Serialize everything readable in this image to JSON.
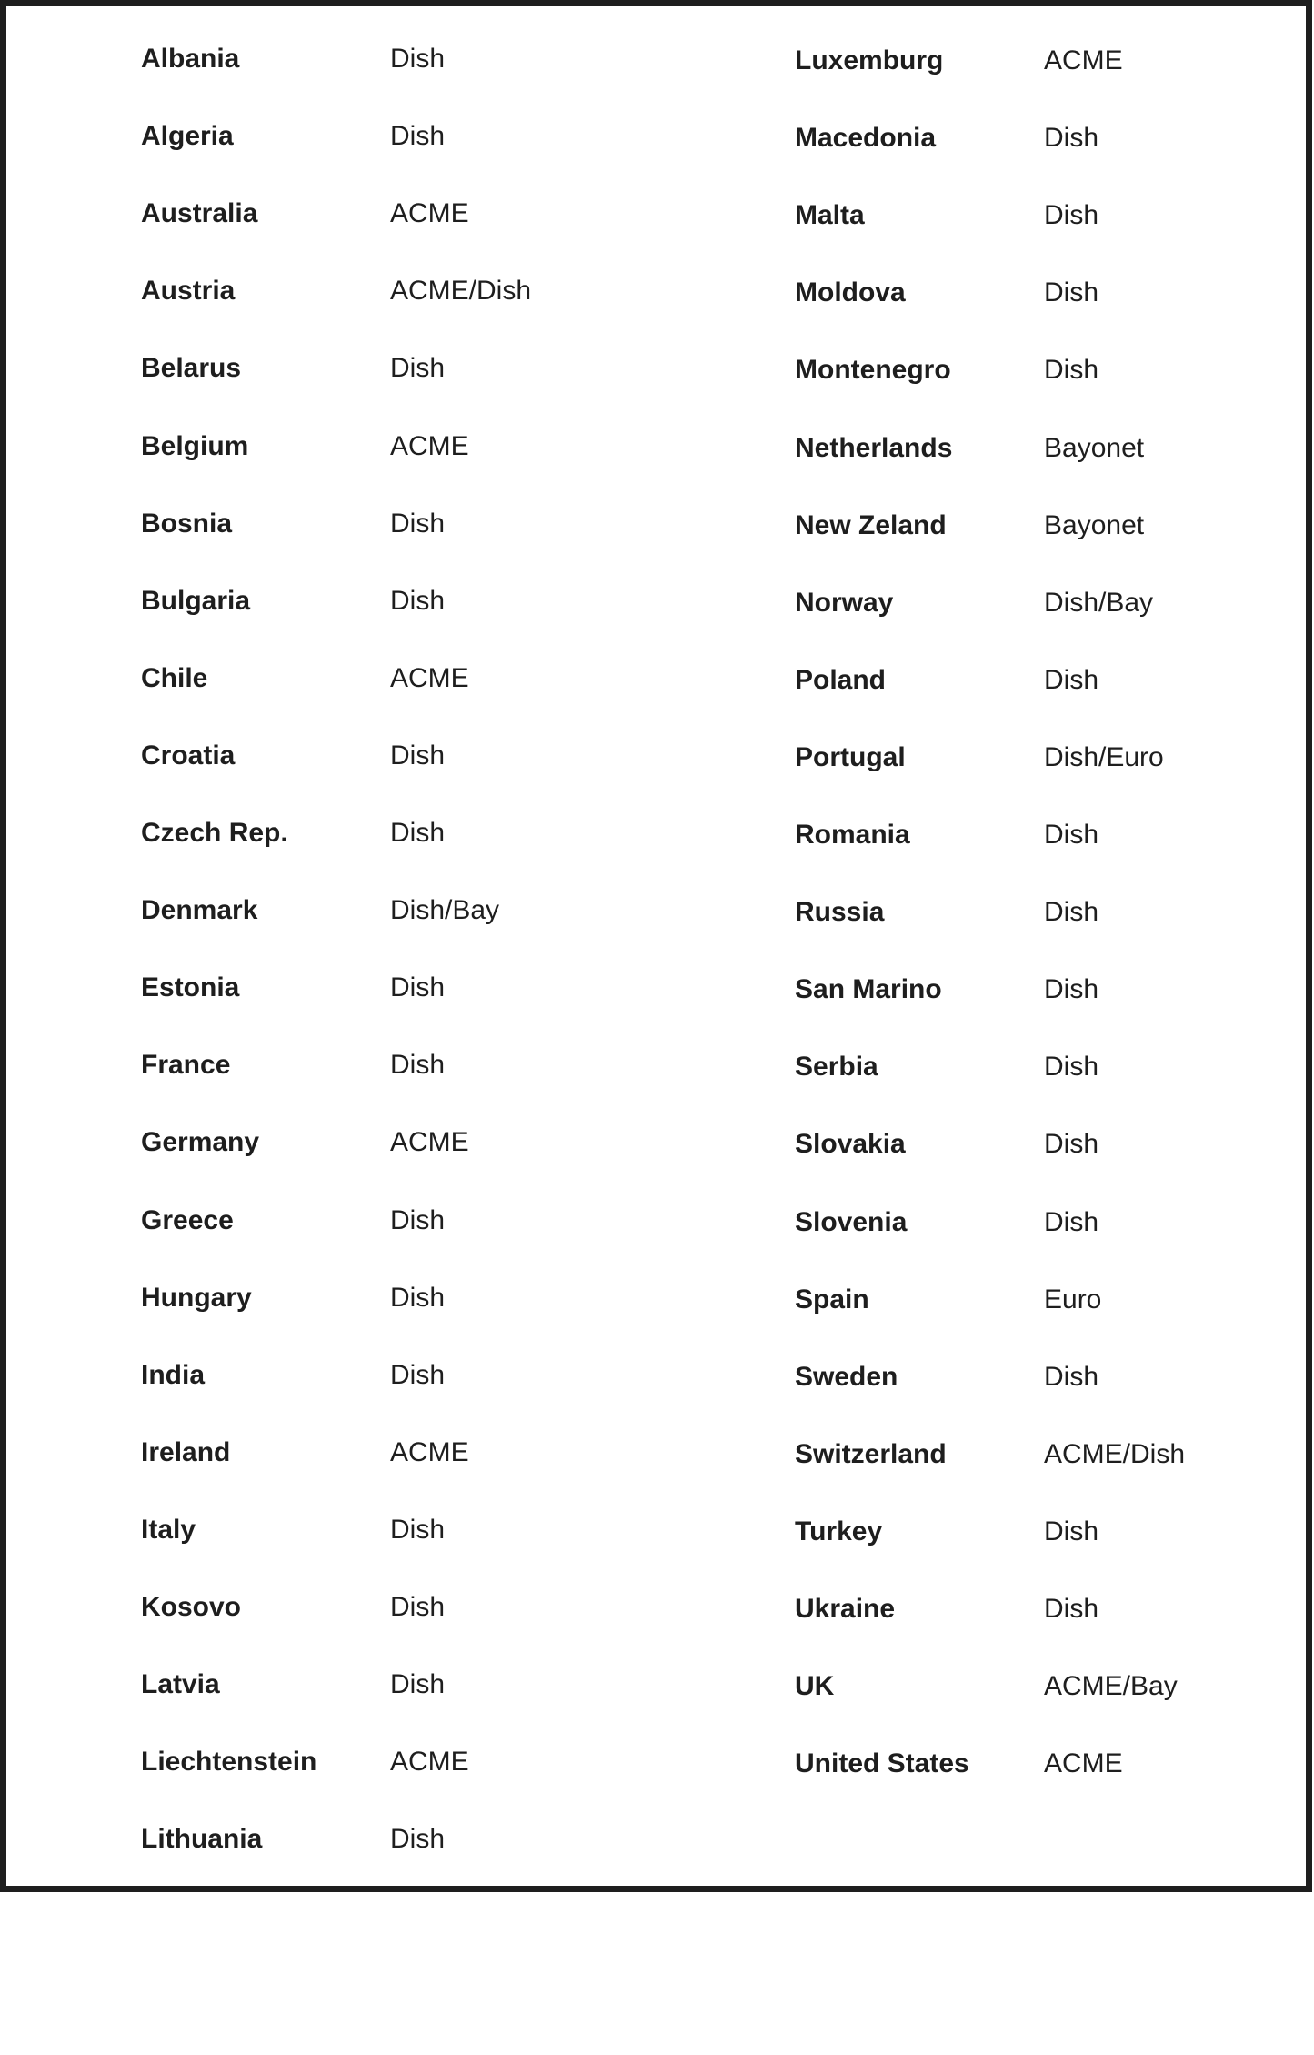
{
  "left_column": [
    {
      "country": "Albania",
      "type": "Dish"
    },
    {
      "country": "Algeria",
      "type": "Dish"
    },
    {
      "country": "Australia",
      "type": "ACME"
    },
    {
      "country": "Austria",
      "type": "ACME/Dish"
    },
    {
      "country": "Belarus",
      "type": "Dish"
    },
    {
      "country": "Belgium",
      "type": "ACME"
    },
    {
      "country": "Bosnia",
      "type": "Dish"
    },
    {
      "country": "Bulgaria",
      "type": "Dish"
    },
    {
      "country": "Chile",
      "type": "ACME"
    },
    {
      "country": "Croatia",
      "type": "Dish"
    },
    {
      "country": "Czech Rep.",
      "type": "Dish"
    },
    {
      "country": "Denmark",
      "type": "Dish/Bay"
    },
    {
      "country": "Estonia",
      "type": "Dish"
    },
    {
      "country": "France",
      "type": "Dish"
    },
    {
      "country": "Germany",
      "type": "ACME"
    },
    {
      "country": "Greece",
      "type": "Dish"
    },
    {
      "country": "Hungary",
      "type": "Dish"
    },
    {
      "country": "India",
      "type": "Dish"
    },
    {
      "country": "Ireland",
      "type": "ACME"
    },
    {
      "country": "Italy",
      "type": "Dish"
    },
    {
      "country": "Kosovo",
      "type": "Dish"
    },
    {
      "country": "Latvia",
      "type": "Dish"
    },
    {
      "country": "Liechtenstein",
      "type": "ACME"
    },
    {
      "country": "Lithuania",
      "type": "Dish"
    }
  ],
  "right_column": [
    {
      "country": "Luxemburg",
      "type": "ACME"
    },
    {
      "country": "Macedonia",
      "type": "Dish"
    },
    {
      "country": "Malta",
      "type": "Dish"
    },
    {
      "country": "Moldova",
      "type": "Dish"
    },
    {
      "country": "Montenegro",
      "type": "Dish"
    },
    {
      "country": "Netherlands",
      "type": "Bayonet"
    },
    {
      "country": "New Zeland",
      "type": "Bayonet"
    },
    {
      "country": "Norway",
      "type": "Dish/Bay"
    },
    {
      "country": "Poland",
      "type": "Dish"
    },
    {
      "country": "Portugal",
      "type": "Dish/Euro"
    },
    {
      "country": "Romania",
      "type": "Dish"
    },
    {
      "country": "Russia",
      "type": "Dish"
    },
    {
      "country": "San Marino",
      "type": "Dish"
    },
    {
      "country": "Serbia",
      "type": "Dish"
    },
    {
      "country": "Slovakia",
      "type": "Dish"
    },
    {
      "country": "Slovenia",
      "type": "Dish"
    },
    {
      "country": "Spain",
      "type": "Euro"
    },
    {
      "country": "Sweden",
      "type": "Dish"
    },
    {
      "country": "Switzerland",
      "type": "ACME/Dish"
    },
    {
      "country": "Turkey",
      "type": "Dish"
    },
    {
      "country": "Ukraine",
      "type": "Dish"
    },
    {
      "country": "UK",
      "type": "ACME/Bay"
    },
    {
      "country": "United States",
      "type": "ACME"
    }
  ]
}
